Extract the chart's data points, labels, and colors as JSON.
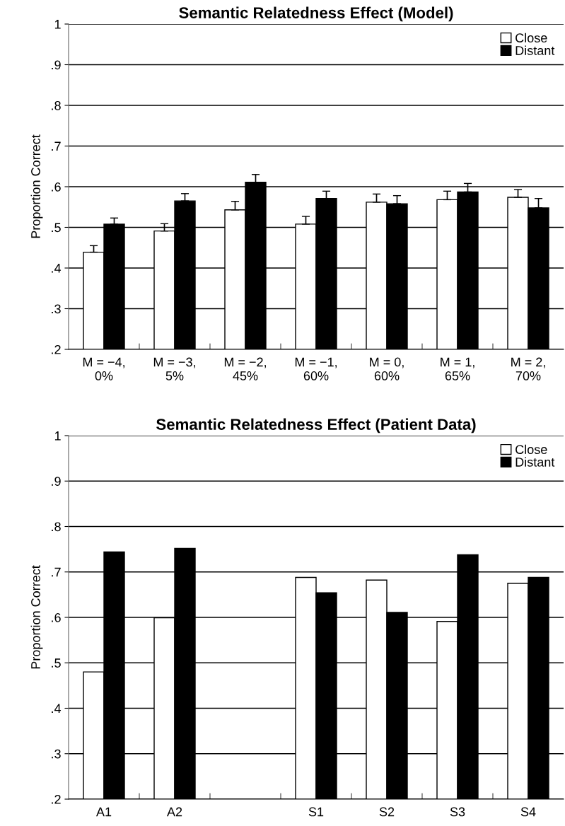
{
  "chart_data": [
    {
      "type": "bar",
      "title": "Semantic Relatedness Effect (Model)",
      "ylabel": "Proportion Correct",
      "categories": [
        "M = −4,\n0%",
        "M = −3,\n5%",
        "M = −2,\n45%",
        "M = −1,\n60%",
        "M = 0,\n60%",
        "M = 1,\n65%",
        "M = 2,\n70%"
      ],
      "series": [
        {
          "name": "Close",
          "color": "#ffffff",
          "values": [
            0.439,
            0.491,
            0.543,
            0.508,
            0.562,
            0.568,
            0.574
          ],
          "errors": [
            0.016,
            0.018,
            0.021,
            0.019,
            0.02,
            0.021,
            0.019
          ]
        },
        {
          "name": "Distant",
          "color": "#000000",
          "values": [
            0.508,
            0.565,
            0.611,
            0.571,
            0.558,
            0.587,
            0.548
          ],
          "errors": [
            0.015,
            0.018,
            0.019,
            0.018,
            0.02,
            0.021,
            0.023
          ]
        }
      ],
      "ylim": [
        0.2,
        1
      ],
      "yticks": [
        {
          "value": 0.2,
          "label": ".2"
        },
        {
          "value": 0.3,
          "label": ".3"
        },
        {
          "value": 0.4,
          "label": ".4"
        },
        {
          "value": 0.5,
          "label": ".5"
        },
        {
          "value": 0.6,
          "label": ".6"
        },
        {
          "value": 0.7,
          "label": ".7"
        },
        {
          "value": 0.8,
          "label": ".8"
        },
        {
          "value": 0.9,
          "label": ".9"
        },
        1
      ],
      "grid": "y",
      "legend": "top right"
    },
    {
      "type": "bar",
      "title": "Semantic Relatedness Effect (Patient Data)",
      "ylabel": "Proportion Correct",
      "categories": [
        "A1",
        "A2",
        null,
        "S1",
        "S2",
        "S3",
        "S4"
      ],
      "series": [
        {
          "name": "Close",
          "color": "#ffffff",
          "values": [
            0.48,
            0.599,
            null,
            0.688,
            0.682,
            0.591,
            0.675
          ]
        },
        {
          "name": "Distant",
          "color": "#000000",
          "values": [
            0.744,
            0.752,
            null,
            0.654,
            0.611,
            0.738,
            0.688
          ]
        }
      ],
      "ylim": [
        0.2,
        1
      ],
      "yticks": [
        {
          "value": 0.2,
          "label": ".2"
        },
        {
          "value": 0.3,
          "label": ".3"
        },
        {
          "value": 0.4,
          "label": ".4"
        },
        {
          "value": 0.5,
          "label": ".5"
        },
        {
          "value": 0.6,
          "label": ".6"
        },
        {
          "value": 0.7,
          "label": ".7"
        },
        {
          "value": 0.8,
          "label": ".8"
        },
        {
          "value": 0.9,
          "label": ".9"
        },
        1
      ],
      "grid": "y",
      "legend": "top right"
    }
  ]
}
